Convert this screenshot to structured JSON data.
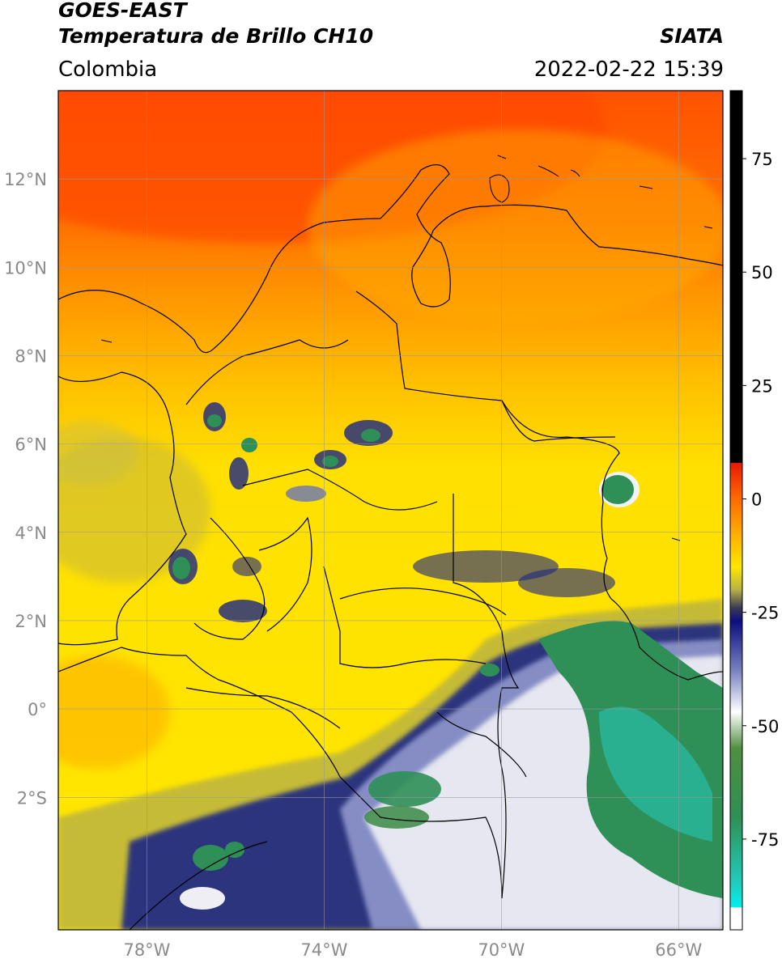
{
  "header": {
    "satellite": "GOES-EAST",
    "product": "Temperatura de Brillo CH10",
    "organization": "SIATA",
    "region": "Colombia",
    "datetime": "2022-02-22 15:39"
  },
  "map": {
    "lon_range": [
      -80,
      -65
    ],
    "lat_range": [
      -5,
      14
    ],
    "lat_ticks": [
      {
        "value": 12,
        "label": "12°N"
      },
      {
        "value": 10,
        "label": "10°N"
      },
      {
        "value": 8,
        "label": "8°N"
      },
      {
        "value": 6,
        "label": "6°N"
      },
      {
        "value": 4,
        "label": "4°N"
      },
      {
        "value": 2,
        "label": "2°N"
      },
      {
        "value": 0,
        "label": "0°"
      },
      {
        "value": -2,
        "label": "2°S"
      }
    ],
    "lon_ticks": [
      {
        "value": -78,
        "label": "78°W"
      },
      {
        "value": -74,
        "label": "74°W"
      },
      {
        "value": -70,
        "label": "70°W"
      },
      {
        "value": -66,
        "label": "66°W"
      }
    ],
    "colors": {
      "warm_top": "#ff4d00",
      "orange": "#ff9a00",
      "yellow": "#ffe600",
      "olive": "#b7b445",
      "navy": "#16207a",
      "white_cloud": "#f1f1f6",
      "green": "#2f8f54",
      "teal": "#20c4a0"
    }
  },
  "colorbar": {
    "range": [
      -95,
      90
    ],
    "ticks": [
      {
        "value": 75,
        "label": "75"
      },
      {
        "value": 50,
        "label": "50"
      },
      {
        "value": 25,
        "label": "25"
      },
      {
        "value": 0,
        "label": "0"
      },
      {
        "value": -25,
        "label": "-25"
      },
      {
        "value": -50,
        "label": "-50"
      },
      {
        "value": -75,
        "label": "-75"
      }
    ],
    "stops": [
      {
        "value": 90,
        "color": "#000000"
      },
      {
        "value": 8,
        "color": "#000000"
      },
      {
        "value": 7.9,
        "color": "#e81a00"
      },
      {
        "value": 0,
        "color": "#ff6a00"
      },
      {
        "value": -8,
        "color": "#ffb000"
      },
      {
        "value": -15,
        "color": "#ffe600"
      },
      {
        "value": -20,
        "color": "#b8b246"
      },
      {
        "value": -24,
        "color": "#3a3a55"
      },
      {
        "value": -27,
        "color": "#0c0e80"
      },
      {
        "value": -38,
        "color": "#7a84c2"
      },
      {
        "value": -47,
        "color": "#ffffff"
      },
      {
        "value": -55,
        "color": "#4f8f40"
      },
      {
        "value": -70,
        "color": "#2f8f54"
      },
      {
        "value": -85,
        "color": "#1ecfbe"
      },
      {
        "value": -90,
        "color": "#00f0f0"
      },
      {
        "value": -90.1,
        "color": "#ffffff"
      },
      {
        "value": -95,
        "color": "#ffffff"
      }
    ]
  }
}
